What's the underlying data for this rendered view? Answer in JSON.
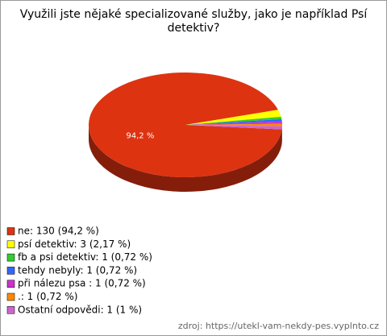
{
  "chart_data": {
    "type": "pie",
    "title": "Využili jste nějaké specializované služby, jako je například Psí detektiv?",
    "categories": [
      "ne: 130 (94,2 %)",
      "psí detektiv: 3 (2,17 %)",
      "fb a psi detektiv: 1 (0,72 %)",
      "tehdy nebyly: 1 (0,72 %)",
      "při nálezu psa : 1 (0,72 %)",
      ".: 1 (0,72 %)",
      "Ostatní odpovědi: 1 (1 %)"
    ],
    "values": [
      94.2,
      2.17,
      0.72,
      0.72,
      0.72,
      0.72,
      1
    ],
    "value_labels": [
      "94,2 %",
      null,
      null,
      null,
      null,
      null,
      null
    ],
    "colors": [
      "#dd3311",
      "#ffff00",
      "#33cc33",
      "#3366ff",
      "#cc33cc",
      "#ff8800",
      "#cc66cc"
    ],
    "source": "zdroj: https://utekl-vam-nekdy-pes.vyplnto.cz"
  }
}
